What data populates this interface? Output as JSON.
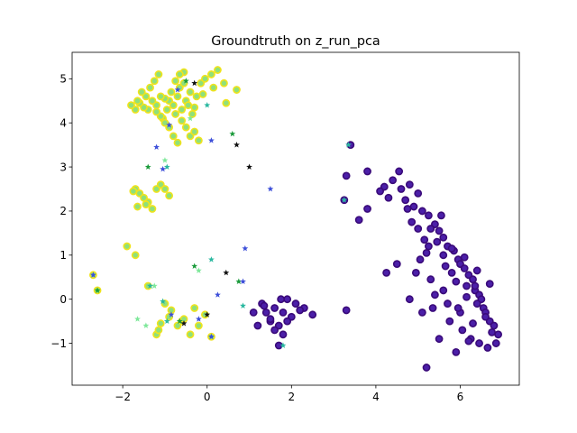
{
  "chart_data": {
    "type": "scatter",
    "title": "Groundtruth on z_run_pca",
    "xlabel": "",
    "ylabel": "",
    "xlim": [
      -3.2,
      7.4
    ],
    "ylim": [
      -1.95,
      5.6
    ],
    "x_ticks": [
      -2,
      0,
      2,
      4,
      6
    ],
    "y_ticks": [
      -1,
      0,
      1,
      2,
      3,
      4,
      5
    ],
    "x_tick_labels": [
      "−2",
      "0",
      "2",
      "4",
      "6"
    ],
    "y_tick_labels": [
      "−1",
      "0",
      "1",
      "2",
      "3",
      "4",
      "5"
    ],
    "grid": false,
    "legend": "none",
    "colors": {
      "cluster_purple_fill": "#4b1fa8",
      "cluster_purple_edge": "#3a0a7a",
      "cluster_yellow_fill": "#8fe07a",
      "cluster_yellow_edge": "#f0e31c",
      "star_blue": "#3d4fd9",
      "star_green": "#1a9a3a",
      "star_teal": "#2ab8a0",
      "star_black": "#111111",
      "star_mint": "#7ee89a"
    },
    "series": [
      {
        "cluster": "purple",
        "marker": "circle",
        "x": [
          1.3,
          1.6,
          1.8,
          1.5,
          1.7,
          2.0,
          2.1,
          1.9,
          1.4,
          1.2,
          1.8,
          1.6,
          2.3,
          2.5,
          1.7,
          1.5,
          1.1,
          1.35,
          1.9,
          2.2,
          1.75,
          3.25,
          3.3,
          3.4,
          3.8,
          4.2,
          4.4,
          4.55,
          4.6,
          4.8,
          5.0,
          4.7,
          4.9,
          5.1,
          5.25,
          5.4,
          5.3,
          5.5,
          5.6,
          5.45,
          5.7,
          5.85,
          5.95,
          6.0,
          6.1,
          6.2,
          6.3,
          6.15,
          6.35,
          6.45,
          6.5,
          6.4,
          6.55,
          6.6,
          6.7,
          6.8,
          6.9,
          5.9,
          5.8,
          5.65,
          5.2,
          5.15,
          5.0,
          4.85,
          4.75,
          4.3,
          4.1,
          3.8,
          3.6,
          4.95,
          5.35,
          5.75,
          6.05,
          6.25,
          6.45,
          6.65,
          6.85,
          6.75,
          6.6,
          6.3,
          6.0,
          5.7,
          5.4,
          5.1,
          4.8,
          4.5,
          4.25,
          3.3,
          5.2,
          5.5,
          5.9,
          6.2,
          5.6,
          5.3,
          5.05,
          5.8,
          6.1,
          6.4,
          6.7,
          5.95,
          5.55,
          6.15,
          5.25,
          5.6,
          6.35
        ],
        "y": [
          -0.1,
          -0.2,
          -0.3,
          -0.5,
          -0.6,
          -0.4,
          -0.1,
          0.0,
          -0.3,
          -0.6,
          -0.8,
          -0.7,
          -0.2,
          -0.35,
          -1.05,
          -0.45,
          -0.3,
          -0.15,
          -0.5,
          -0.25,
          0.0,
          2.25,
          2.8,
          3.5,
          2.9,
          2.55,
          2.7,
          2.9,
          2.5,
          2.6,
          2.4,
          2.25,
          2.1,
          2.0,
          1.9,
          1.7,
          1.6,
          1.55,
          1.4,
          1.3,
          1.2,
          1.1,
          0.9,
          0.8,
          0.7,
          0.55,
          0.45,
          0.3,
          0.2,
          0.1,
          0.0,
          -0.1,
          -0.2,
          -0.3,
          -0.5,
          -0.6,
          -0.8,
          0.4,
          0.6,
          0.75,
          1.05,
          1.35,
          1.6,
          1.75,
          2.05,
          2.3,
          2.45,
          2.05,
          1.8,
          0.6,
          -0.2,
          -0.5,
          -0.7,
          -0.9,
          -1.0,
          -1.1,
          -1.0,
          -0.75,
          -0.4,
          -0.55,
          -0.3,
          -0.1,
          0.1,
          -0.3,
          0.0,
          0.8,
          0.6,
          -0.25,
          -1.55,
          -0.9,
          -1.2,
          -0.95,
          0.2,
          0.45,
          0.9,
          1.15,
          0.95,
          0.65,
          0.35,
          -0.2,
          1.9,
          0.05,
          1.2,
          1.0,
          0.3
        ]
      },
      {
        "cluster": "yellow",
        "marker": "circle",
        "x": [
          -0.9,
          -0.8,
          -0.7,
          -0.6,
          -0.5,
          -0.4,
          -0.75,
          -0.65,
          -0.55,
          -0.45,
          -0.85,
          -0.95,
          -1.0,
          -1.1,
          -1.2,
          -1.3,
          -1.4,
          -1.5,
          -1.6,
          -1.7,
          -1.8,
          -1.35,
          -1.25,
          -1.15,
          -1.05,
          -0.35,
          -0.25,
          -0.15,
          -0.05,
          0.1,
          0.25,
          0.4,
          0.7,
          -0.6,
          -0.5,
          -0.4,
          -0.3,
          -0.2,
          -0.7,
          -0.8,
          -0.9,
          -1.0,
          -1.1,
          -1.2,
          -1.45,
          -1.55,
          -1.65,
          -0.3,
          -0.1,
          0.15,
          0.45,
          -0.55,
          -0.65,
          -0.75,
          -1.7,
          -1.6,
          -1.5,
          -1.4,
          -1.2,
          -1.1,
          -1.0,
          -0.9,
          -1.65,
          -1.75,
          -1.45,
          -1.3,
          -1.9,
          -1.7,
          -1.4,
          -2.7,
          -2.6,
          -1.0,
          -0.9,
          -0.6,
          -0.2,
          -0.05,
          0.1,
          -0.4,
          -0.3,
          -1.2,
          -1.1,
          -0.7,
          -0.55,
          -1.15,
          -0.85
        ],
        "y": [
          4.5,
          4.4,
          4.6,
          4.3,
          4.5,
          4.7,
          4.2,
          4.8,
          4.9,
          4.4,
          4.7,
          4.3,
          4.55,
          4.6,
          4.4,
          4.5,
          4.3,
          4.35,
          4.45,
          4.3,
          4.4,
          4.8,
          4.95,
          5.1,
          4.1,
          4.2,
          4.6,
          4.9,
          5.0,
          5.1,
          5.2,
          4.9,
          4.75,
          4.05,
          3.9,
          3.7,
          3.8,
          3.6,
          3.55,
          3.7,
          3.9,
          4.0,
          4.15,
          4.25,
          4.6,
          4.7,
          4.5,
          4.35,
          4.65,
          4.8,
          4.45,
          5.15,
          5.1,
          4.95,
          2.5,
          2.4,
          2.3,
          2.2,
          2.5,
          2.6,
          2.5,
          2.35,
          2.1,
          2.45,
          2.15,
          2.05,
          1.2,
          1.0,
          0.3,
          0.55,
          0.2,
          -0.1,
          -0.4,
          -0.5,
          -0.6,
          -0.35,
          -0.85,
          -0.8,
          -0.2,
          -0.8,
          -0.55,
          -0.6,
          -0.45,
          -0.7,
          -0.25
        ]
      },
      {
        "cluster": "stars",
        "marker": "star",
        "x": [
          -0.7,
          -0.5,
          -0.3,
          -0.9,
          -0.4,
          0.0,
          0.1,
          0.6,
          0.7,
          -1.2,
          -1.0,
          -0.95,
          -1.05,
          -1.4,
          1.0,
          1.5,
          -0.2,
          0.1,
          0.9,
          0.75,
          0.45,
          0.85,
          -1.25,
          -1.05,
          -0.85,
          -0.65,
          -0.55,
          -0.2,
          -1.65,
          -0.95,
          -2.7,
          -2.6,
          1.8,
          3.25,
          3.35,
          0.85,
          0.25,
          -0.3,
          0.0,
          0.1,
          -1.45,
          -1.35
        ],
        "y": [
          4.75,
          4.95,
          4.9,
          3.95,
          4.1,
          4.4,
          3.6,
          3.75,
          3.5,
          3.45,
          3.15,
          3.0,
          2.95,
          3.0,
          3.0,
          2.5,
          0.65,
          0.9,
          1.15,
          0.4,
          0.6,
          0.4,
          0.3,
          -0.05,
          -0.35,
          -0.5,
          -0.55,
          -0.45,
          -0.45,
          -0.5,
          0.55,
          0.2,
          -1.05,
          2.25,
          3.5,
          -0.15,
          0.1,
          0.75,
          -0.35,
          -0.85,
          -0.6,
          0.3
        ]
      }
    ]
  }
}
